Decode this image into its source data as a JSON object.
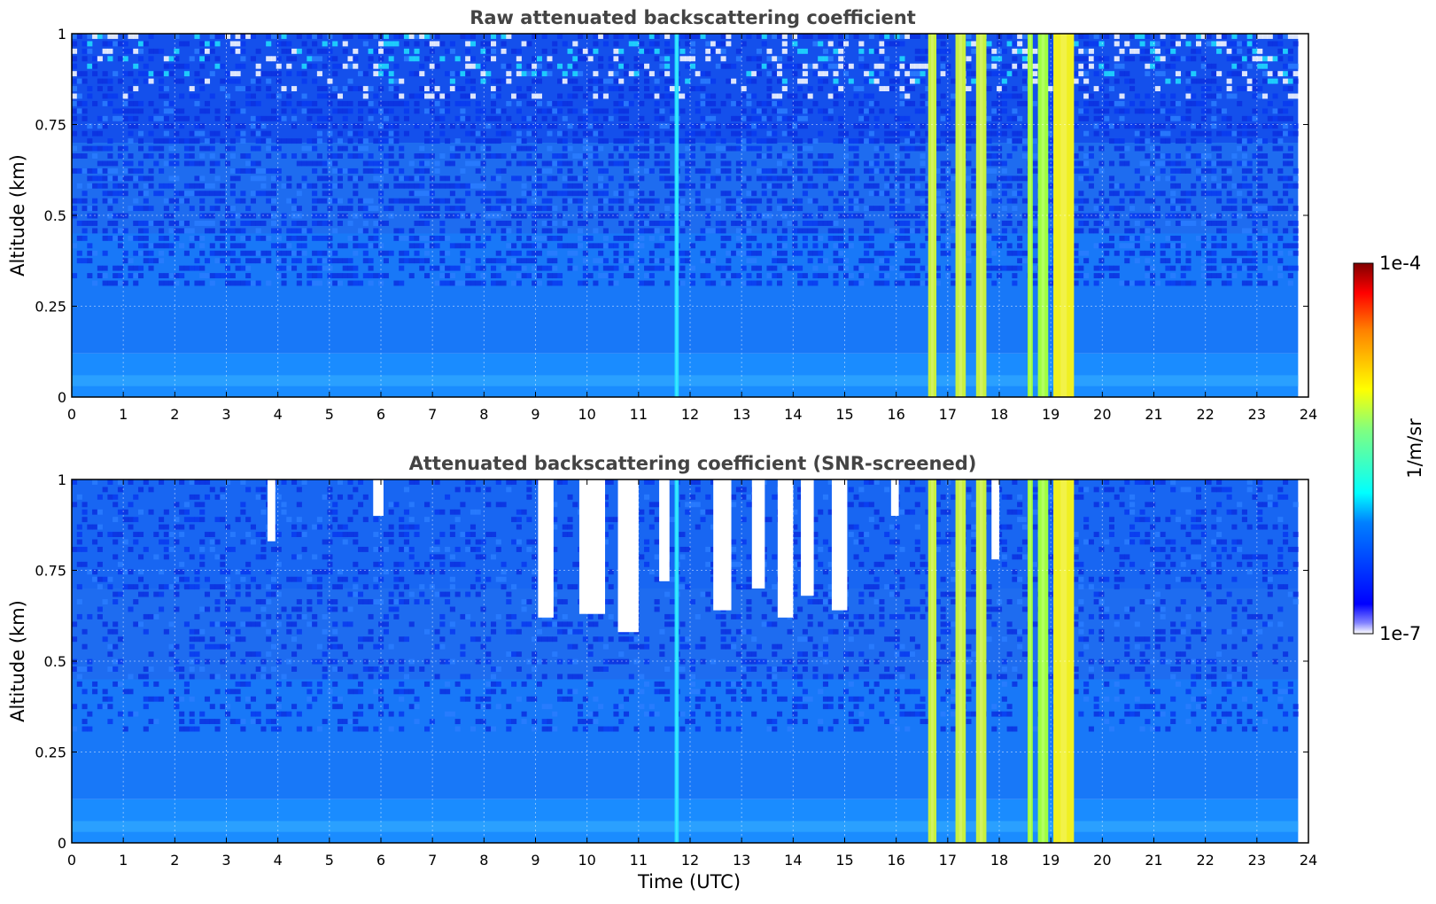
{
  "chart_data": [
    {
      "type": "heatmap",
      "title": "Raw attenuated backscattering coefficient",
      "xlabel": "",
      "ylabel": "Altitude (km)",
      "xlim": [
        0,
        24
      ],
      "ylim": [
        0,
        1
      ],
      "xticks": [
        "0",
        "1",
        "2",
        "3",
        "4",
        "5",
        "6",
        "7",
        "8",
        "9",
        "10",
        "11",
        "12",
        "13",
        "14",
        "15",
        "16",
        "17",
        "18",
        "19",
        "20",
        "21",
        "22",
        "23",
        "24"
      ],
      "yticks": [
        "0",
        "0.25",
        "0.5",
        "0.75",
        "1"
      ],
      "grid": true,
      "data_time_range": [
        0,
        23.8
      ],
      "bright_bands": [
        {
          "x_start": 11.7,
          "x_end": 11.78,
          "level": "cyan"
        },
        {
          "x_start": 16.62,
          "x_end": 16.78,
          "level": "yellow-green"
        },
        {
          "x_start": 17.15,
          "x_end": 17.35,
          "level": "yellow-green"
        },
        {
          "x_start": 17.55,
          "x_end": 17.75,
          "level": "yellow-green"
        },
        {
          "x_start": 18.55,
          "x_end": 18.65,
          "level": "green"
        },
        {
          "x_start": 18.75,
          "x_end": 18.95,
          "level": "green"
        },
        {
          "x_start": 19.05,
          "x_end": 19.45,
          "level": "yellow"
        }
      ]
    },
    {
      "type": "heatmap",
      "title": "Attenuated backscattering coefficient (SNR-screened)",
      "xlabel": "Time (UTC)",
      "ylabel": "Altitude (km)",
      "xlim": [
        0,
        24
      ],
      "ylim": [
        0,
        1
      ],
      "xticks": [
        "0",
        "1",
        "2",
        "3",
        "4",
        "5",
        "6",
        "7",
        "8",
        "9",
        "10",
        "11",
        "12",
        "13",
        "14",
        "15",
        "16",
        "17",
        "18",
        "19",
        "20",
        "21",
        "22",
        "23",
        "24"
      ],
      "yticks": [
        "0",
        "0.25",
        "0.5",
        "0.75",
        "1"
      ],
      "grid": true,
      "data_time_range": [
        0,
        23.8
      ],
      "screened_regions": [
        {
          "x_start": 3.8,
          "x_end": 3.95,
          "y_bottom": 0.83
        },
        {
          "x_start": 5.85,
          "x_end": 6.05,
          "y_bottom": 0.9
        },
        {
          "x_start": 9.05,
          "x_end": 9.35,
          "y_bottom": 0.62
        },
        {
          "x_start": 9.85,
          "x_end": 10.35,
          "y_bottom": 0.63
        },
        {
          "x_start": 10.6,
          "x_end": 11.0,
          "y_bottom": 0.58
        },
        {
          "x_start": 11.4,
          "x_end": 11.6,
          "y_bottom": 0.72
        },
        {
          "x_start": 12.45,
          "x_end": 12.8,
          "y_bottom": 0.64
        },
        {
          "x_start": 13.2,
          "x_end": 13.45,
          "y_bottom": 0.7
        },
        {
          "x_start": 13.7,
          "x_end": 14.0,
          "y_bottom": 0.62
        },
        {
          "x_start": 14.15,
          "x_end": 14.4,
          "y_bottom": 0.68
        },
        {
          "x_start": 14.75,
          "x_end": 15.05,
          "y_bottom": 0.64
        },
        {
          "x_start": 15.9,
          "x_end": 16.05,
          "y_bottom": 0.9
        },
        {
          "x_start": 17.85,
          "x_end": 18.0,
          "y_bottom": 0.78
        }
      ],
      "bright_bands": [
        {
          "x_start": 11.7,
          "x_end": 11.78,
          "level": "cyan"
        },
        {
          "x_start": 16.62,
          "x_end": 16.78,
          "level": "yellow-green"
        },
        {
          "x_start": 17.15,
          "x_end": 17.35,
          "level": "yellow-green"
        },
        {
          "x_start": 17.55,
          "x_end": 17.75,
          "level": "yellow-green"
        },
        {
          "x_start": 18.55,
          "x_end": 18.65,
          "level": "green"
        },
        {
          "x_start": 18.75,
          "x_end": 18.95,
          "level": "green"
        },
        {
          "x_start": 19.05,
          "x_end": 19.45,
          "level": "yellow"
        }
      ]
    }
  ],
  "colorbar": {
    "label": "1/m/sr",
    "max_label": "1e-4",
    "min_label": "1e-7",
    "colormap": "jet"
  },
  "colors": {
    "background_low": "#1e6cf0",
    "background_mid": "#1a8cff",
    "noise_dark": "#0a2fe0",
    "bright_yellow": "#f0f020",
    "bright_green": "#a0ff40",
    "cyan": "#20e0ff",
    "screened": "#ffffff"
  }
}
